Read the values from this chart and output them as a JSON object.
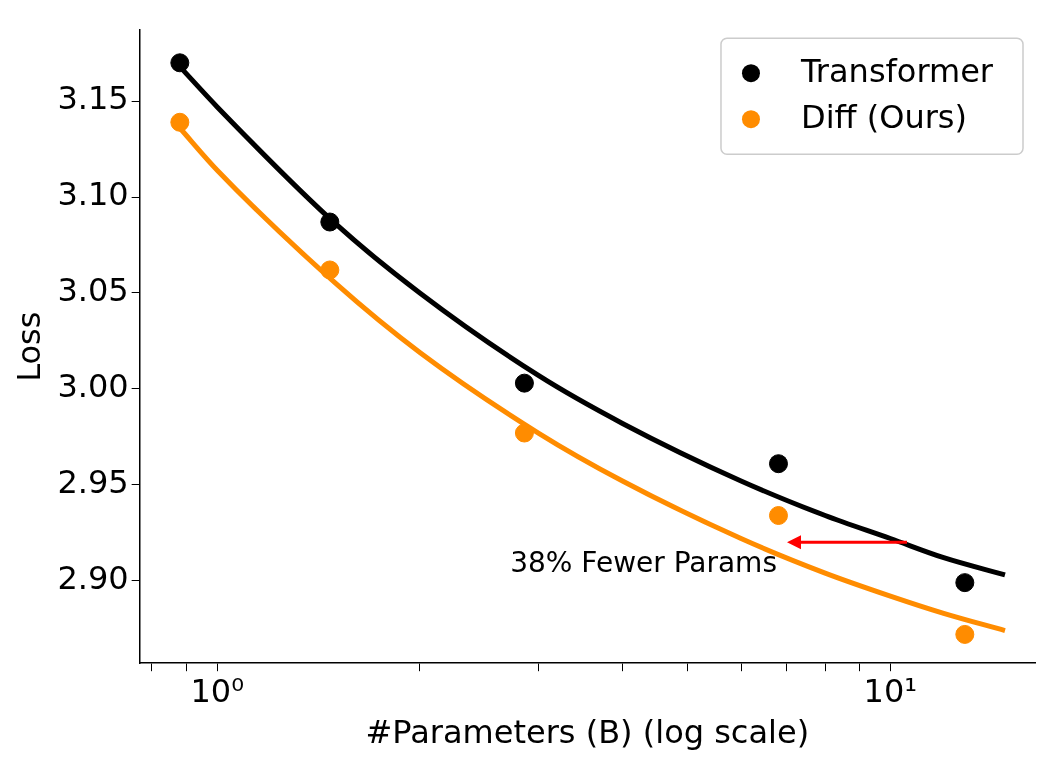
{
  "chart_data": {
    "type": "scatter",
    "xlabel": "#Parameters (B) (log scale)",
    "ylabel": "Loss",
    "log": "x",
    "xlim": [
      0.767,
      16.4
    ],
    "ylim": [
      2.857,
      3.187
    ],
    "xticks": [
      {
        "value": 0.8,
        "label": null
      },
      {
        "value": 0.9,
        "label": null
      },
      {
        "value": 1,
        "label": "10⁰"
      },
      {
        "value": 2,
        "label": null
      },
      {
        "value": 3,
        "label": null
      },
      {
        "value": 4,
        "label": null
      },
      {
        "value": 5,
        "label": null
      },
      {
        "value": 6,
        "label": null
      },
      {
        "value": 7,
        "label": null
      },
      {
        "value": 8,
        "label": null
      },
      {
        "value": 9,
        "label": null
      },
      {
        "value": 10,
        "label": "10¹"
      }
    ],
    "yticks": [
      {
        "value": 2.9,
        "label": "2.90"
      },
      {
        "value": 2.95,
        "label": "2.95"
      },
      {
        "value": 3.0,
        "label": "3.00"
      },
      {
        "value": 3.05,
        "label": "3.05"
      },
      {
        "value": 3.1,
        "label": "3.10"
      },
      {
        "value": 3.15,
        "label": "3.15"
      }
    ],
    "grid": false,
    "legend": "top right",
    "series": [
      {
        "name": "Transformer",
        "type": "scatter",
        "marker": "circle",
        "color": "#000000",
        "x": [
          0.88,
          1.47,
          2.86,
          6.82,
          12.9
        ],
        "values": [
          3.17,
          3.087,
          3.003,
          2.961,
          2.899
        ]
      },
      {
        "name": "Diff (Ours)",
        "type": "scatter",
        "marker": "circle",
        "color": "#ff8c00",
        "x": [
          0.88,
          1.47,
          2.86,
          6.82,
          12.9
        ],
        "values": [
          3.139,
          3.062,
          2.977,
          2.934,
          2.872
        ]
      },
      {
        "type": "line",
        "marker": "none",
        "color": "#000000",
        "x": [
          0.88,
          1,
          1.5,
          2,
          3,
          4,
          6,
          8,
          10,
          12,
          14.8
        ],
        "values": [
          3.168,
          3.147,
          3.086,
          3.05,
          3.007,
          2.982,
          2.952,
          2.934,
          2.922,
          2.912,
          2.903
        ]
      },
      {
        "type": "line",
        "marker": "none",
        "color": "#ff8c00",
        "x": [
          0.88,
          1,
          1.5,
          2,
          3,
          4,
          6,
          8,
          10,
          12,
          14.8
        ],
        "values": [
          3.136,
          3.114,
          3.055,
          3.019,
          2.977,
          2.952,
          2.922,
          2.904,
          2.892,
          2.883,
          2.874
        ]
      }
    ],
    "annotations": [
      "38% Fewer Params"
    ]
  }
}
